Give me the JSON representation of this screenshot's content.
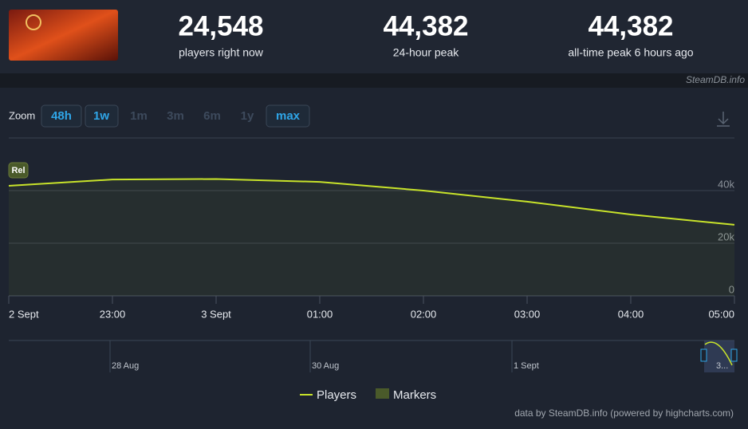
{
  "header": {
    "stats": [
      {
        "value": "24,548",
        "label": "players right now"
      },
      {
        "value": "44,382",
        "label": "24-hour peak"
      },
      {
        "value": "44,382",
        "label": "all-time peak 6 hours ago"
      }
    ],
    "source": "SteamDB.info"
  },
  "zoom": {
    "label": "Zoom",
    "options": [
      "48h",
      "1w",
      "1m",
      "3m",
      "6m",
      "1y",
      "max"
    ]
  },
  "chart_data": {
    "type": "line",
    "categories": [
      "2 Sept",
      "23:00",
      "3 Sept",
      "01:00",
      "02:00",
      "03:00",
      "04:00",
      "05:00"
    ],
    "series": [
      {
        "name": "Players",
        "color": "#c8e32a",
        "values": [
          41800,
          44200,
          44400,
          43300,
          40000,
          35800,
          30900,
          27000
        ]
      }
    ],
    "markers": {
      "name": "Markers",
      "labels": [
        "Rel"
      ]
    },
    "ylim": [
      0,
      60000
    ],
    "yticks": [
      0,
      {
        "value": 20000,
        "label": "20k"
      },
      {
        "value": 40000,
        "label": "40k"
      }
    ],
    "grid": true
  },
  "navigator": {
    "labels": [
      "28 Aug",
      "30 Aug",
      "1 Sept",
      "3..."
    ]
  },
  "credit": "data by SteamDB.info (powered by highcharts.com)"
}
